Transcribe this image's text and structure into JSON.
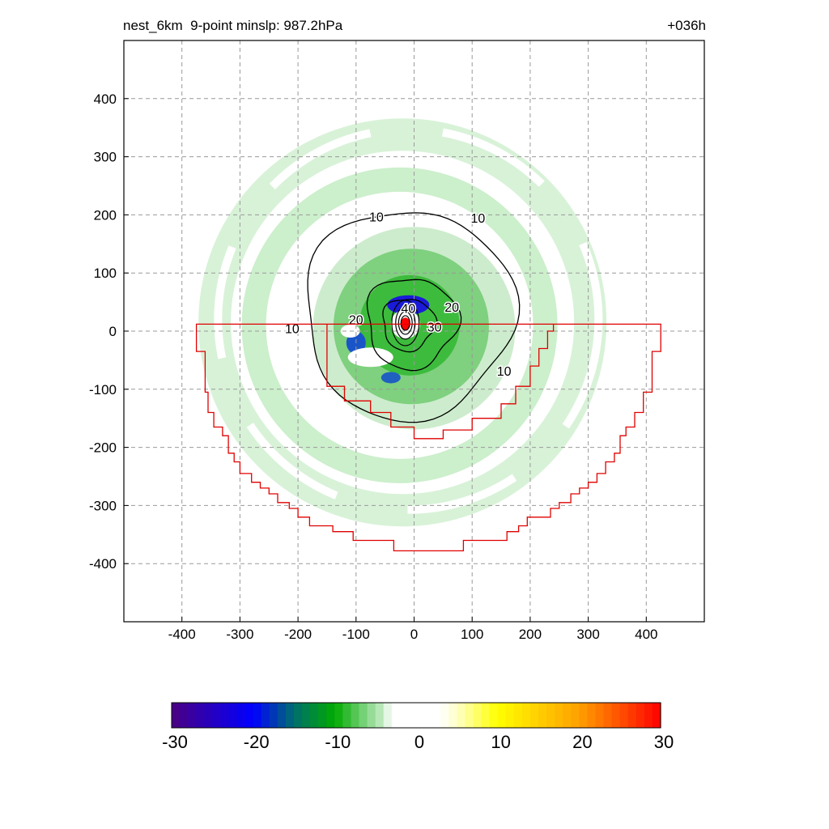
{
  "header": {
    "title_left": "nest_6km  9-point minslp: 987.2hPa",
    "title_right": "+036h"
  },
  "chart_data": {
    "type": "contour",
    "title": "nest_6km  9-point minslp: 987.2hPa",
    "forecast_hour": "+036h",
    "xlim": [
      -500,
      500
    ],
    "ylim": [
      -500,
      500
    ],
    "xticks": [
      -400,
      -300,
      -200,
      -100,
      0,
      100,
      200,
      300,
      400
    ],
    "yticks": [
      400,
      300,
      200,
      100,
      0,
      -100,
      -200,
      -300,
      -400
    ],
    "grid": true,
    "storm_center": [
      -15,
      12
    ],
    "contour_labels": [
      {
        "text": "10",
        "x": -65,
        "y": 197
      },
      {
        "text": "10",
        "x": 110,
        "y": 195
      },
      {
        "text": "10",
        "x": -210,
        "y": 5
      },
      {
        "text": "10",
        "x": 155,
        "y": -68
      },
      {
        "text": "20",
        "x": -100,
        "y": 20
      },
      {
        "text": "20",
        "x": 65,
        "y": 42
      },
      {
        "text": "30",
        "x": 35,
        "y": 8
      },
      {
        "text": "40",
        "x": -10,
        "y": 40
      }
    ],
    "colorbar": {
      "ticks": [
        "-30",
        "-20",
        "-10",
        "0",
        "10",
        "20",
        "30"
      ],
      "range": [
        -30,
        30
      ],
      "colors": [
        "#4b0082",
        "#0000ff",
        "#008080",
        "#00b000",
        "#ffffff",
        "#ffff00",
        "#ff0000"
      ]
    }
  }
}
